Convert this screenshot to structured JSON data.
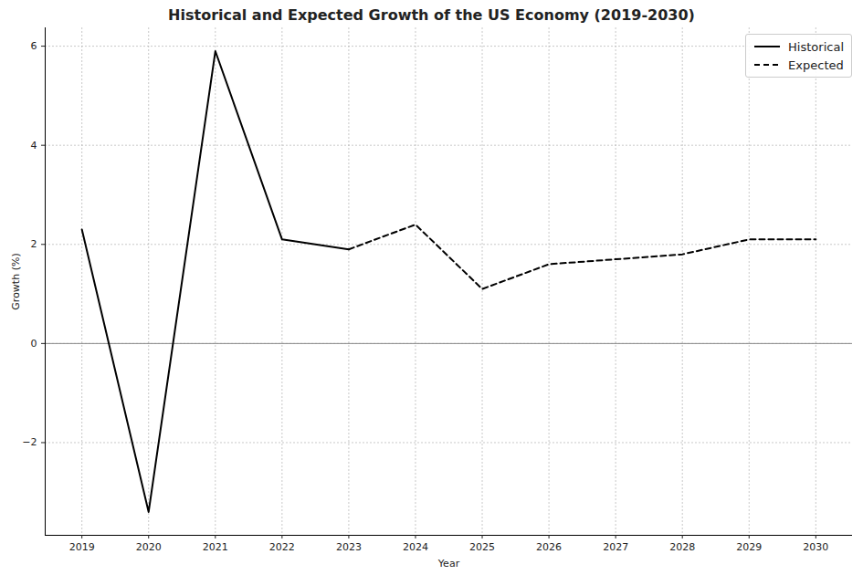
{
  "chart_data": {
    "type": "line",
    "title": "Historical and Expected Growth of the US Economy (2019-2030)",
    "x_label": "Year",
    "y_label": "Growth (%)",
    "x": [
      2019,
      2020,
      2021,
      2022,
      2023,
      2024,
      2025,
      2026,
      2027,
      2028,
      2029,
      2030
    ],
    "series": [
      {
        "name": "Historical",
        "color": "#000000",
        "line_style": "solid",
        "values": [
          2.3,
          -3.4,
          5.9,
          2.1,
          1.9,
          null,
          null,
          null,
          null,
          null,
          null,
          null
        ]
      },
      {
        "name": "Expected",
        "color": "#000000",
        "line_style": "dashed",
        "values": [
          null,
          null,
          null,
          null,
          1.9,
          2.4,
          1.1,
          1.6,
          1.7,
          1.8,
          2.1,
          2.1
        ]
      }
    ],
    "xlim": [
      2018.45,
      2030.55
    ],
    "xticks": [
      2019,
      2020,
      2021,
      2022,
      2023,
      2024,
      2025,
      2026,
      2027,
      2028,
      2029,
      2030
    ],
    "ylim": [
      -3.87,
      6.37
    ],
    "yticks": [
      {
        "value": -2,
        "label": "−2"
      },
      0,
      2,
      4,
      6
    ],
    "reference_lines": [
      0
    ],
    "grid": true,
    "legend": "upper right"
  }
}
